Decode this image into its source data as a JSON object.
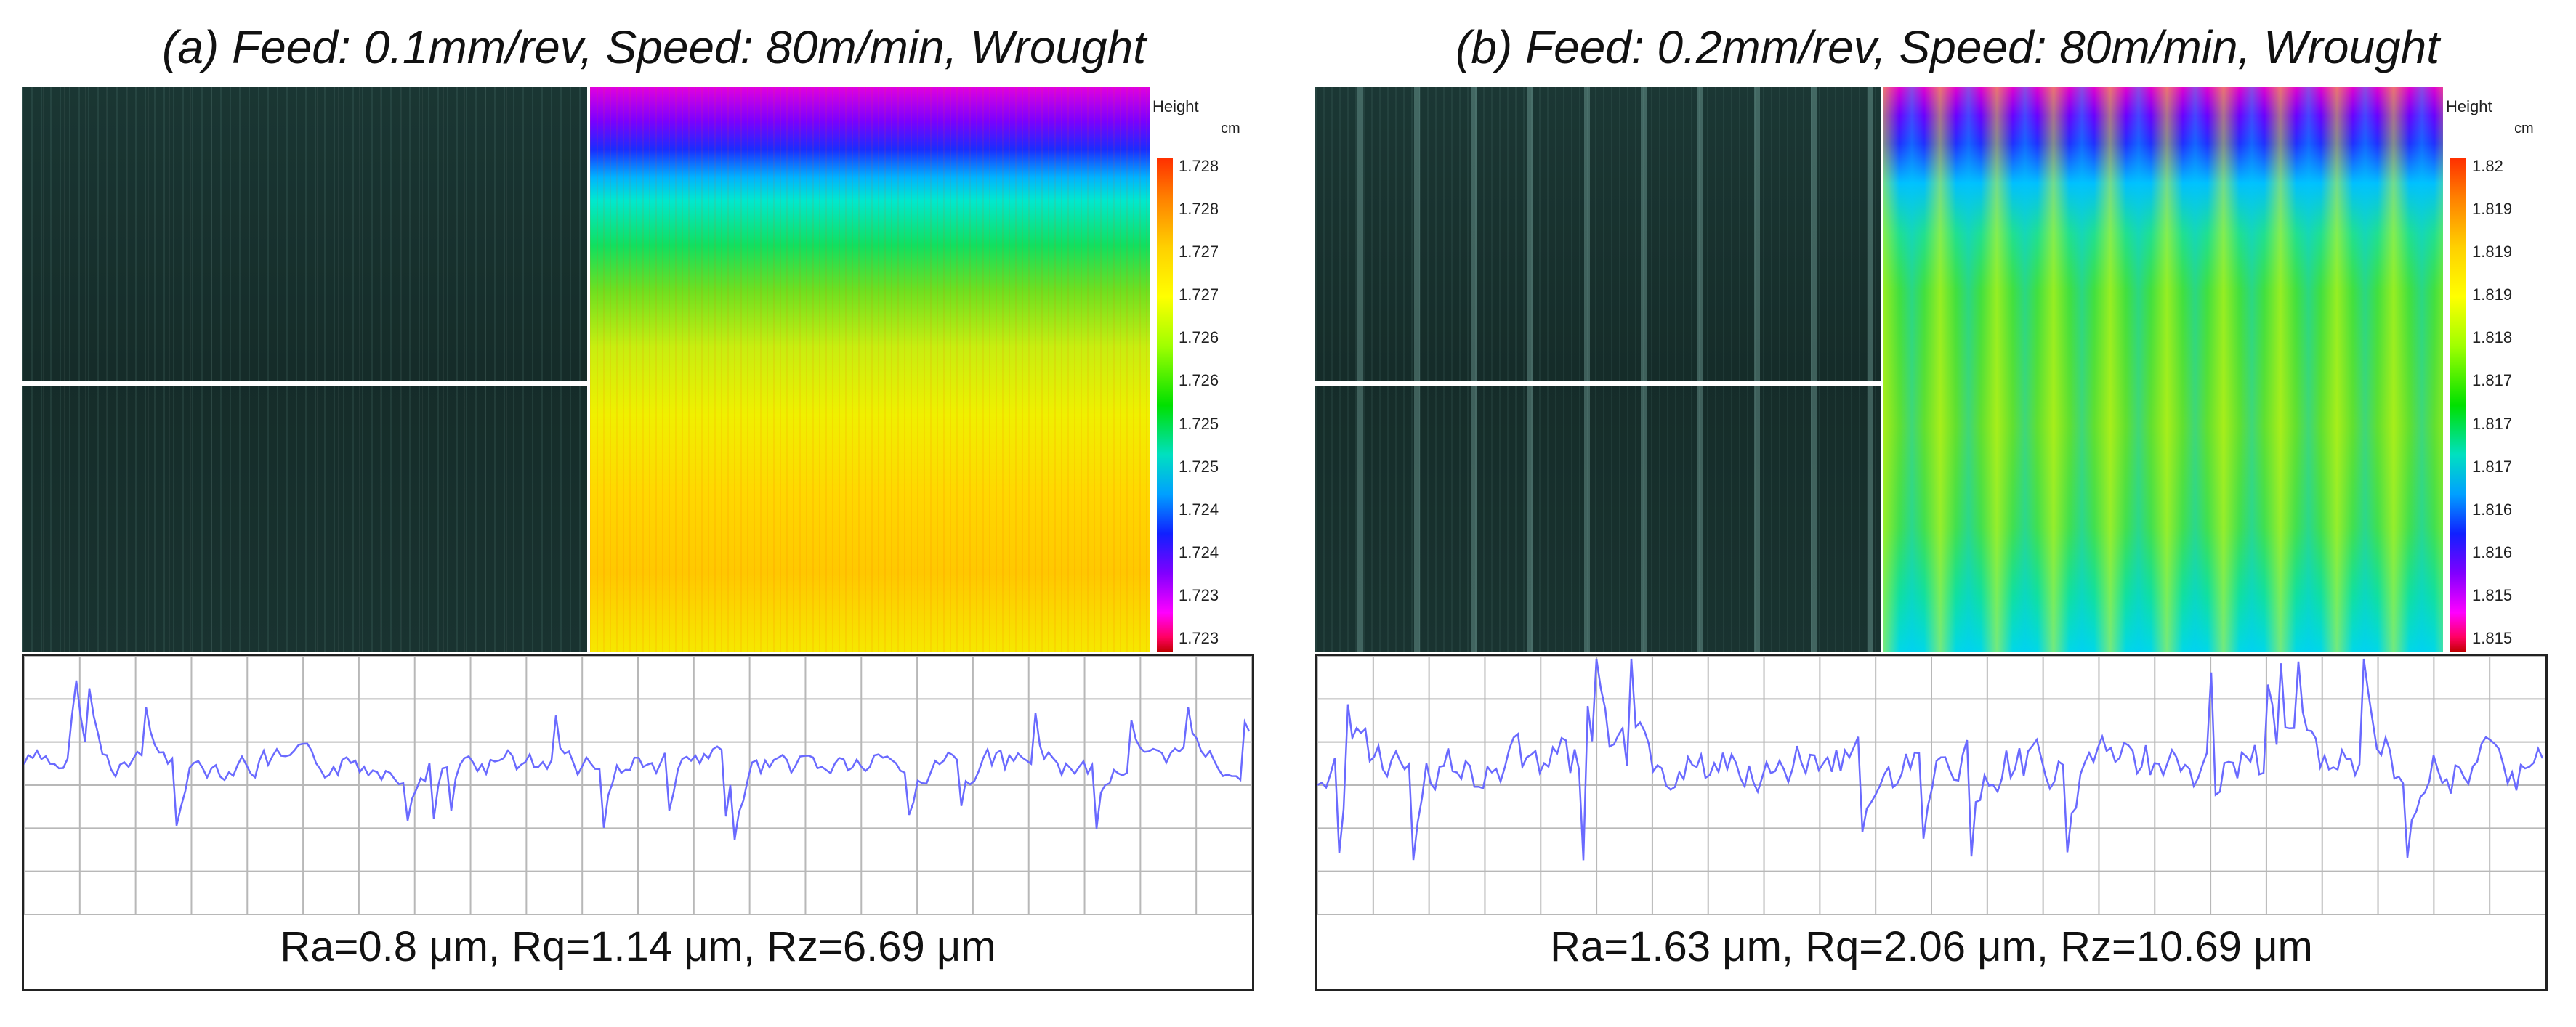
{
  "panels": [
    {
      "title": "(a) Feed: 0.1mm/rev, Speed: 80m/min, Wrought",
      "colorbar_label": "Height",
      "colorbar_unit": "cm",
      "colorbar_ticks": [
        "1.728",
        "1.728",
        "1.727",
        "1.727",
        "1.726",
        "1.726",
        "1.725",
        "1.725",
        "1.724",
        "1.724",
        "1.723",
        "1.723"
      ],
      "roughness": "Ra=0.8 μm, Rq=1.14 μm, Rz=6.69 μm",
      "profile_seed": 7,
      "profile_amplitude": 0.55
    },
    {
      "title": "(b) Feed: 0.2mm/rev, Speed: 80m/min, Wrought",
      "colorbar_label": "Height",
      "colorbar_unit": "cm",
      "colorbar_ticks": [
        "1.82",
        "1.819",
        "1.819",
        "1.819",
        "1.818",
        "1.817",
        "1.817",
        "1.817",
        "1.816",
        "1.816",
        "1.815",
        "1.815"
      ],
      "roughness": "Ra=1.63 μm, Rq=2.06 μm, Rz=10.69 μm",
      "profile_seed": 19,
      "profile_amplitude": 1.0
    }
  ],
  "colors": {
    "profile_line": "#6a6aff",
    "grid": "#b8b8b8"
  }
}
